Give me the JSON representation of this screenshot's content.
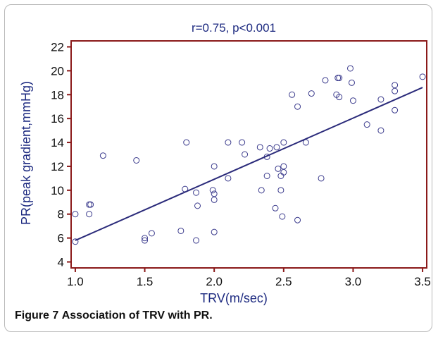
{
  "caption": {
    "label": "Figure 7",
    "text": "Association of TRV with PR."
  },
  "colors": {
    "axis_frame": "#8b1a1a",
    "axis_text": "#1d2a80",
    "tick_text": "#111111",
    "marker": "#3a3a8c",
    "regression_line": "#2a2a7a",
    "background": "#ffffff"
  },
  "chart_data": {
    "type": "scatter",
    "title": "r=0.75, p<0.001",
    "xlabel": "TRV(m/sec)",
    "ylabel": "PR(peak gradient,mmHg)",
    "xlim": [
      0.97,
      3.53
    ],
    "ylim": [
      3.5,
      22.5
    ],
    "xticks": [
      1.0,
      1.5,
      2.0,
      2.5,
      3.0,
      3.5
    ],
    "xtick_labels": [
      "1.0",
      "1.5",
      "2.0",
      "2.5",
      "3.0",
      "3.5"
    ],
    "yticks": [
      4,
      6,
      8,
      10,
      12,
      14,
      16,
      18,
      20,
      22
    ],
    "ytick_labels": [
      "4",
      "6",
      "8",
      "10",
      "12",
      "14",
      "16",
      "18",
      "20",
      "22"
    ],
    "grid": false,
    "legend": false,
    "marker": "open-circle",
    "regression_line": {
      "x": [
        1.0,
        3.5
      ],
      "y": [
        5.8,
        18.6
      ]
    },
    "points": [
      {
        "x": 1.0,
        "y": 5.7
      },
      {
        "x": 1.0,
        "y": 8.0
      },
      {
        "x": 1.1,
        "y": 8.0
      },
      {
        "x": 1.1,
        "y": 8.8
      },
      {
        "x": 1.11,
        "y": 8.8
      },
      {
        "x": 1.2,
        "y": 12.9
      },
      {
        "x": 1.44,
        "y": 12.5
      },
      {
        "x": 1.5,
        "y": 5.8
      },
      {
        "x": 1.5,
        "y": 6.0
      },
      {
        "x": 1.55,
        "y": 6.4
      },
      {
        "x": 1.76,
        "y": 6.6
      },
      {
        "x": 1.79,
        "y": 10.1
      },
      {
        "x": 1.8,
        "y": 14.0
      },
      {
        "x": 1.87,
        "y": 5.8
      },
      {
        "x": 1.87,
        "y": 9.8
      },
      {
        "x": 1.88,
        "y": 8.7
      },
      {
        "x": 1.99,
        "y": 10.0
      },
      {
        "x": 2.0,
        "y": 12.0
      },
      {
        "x": 2.0,
        "y": 9.7
      },
      {
        "x": 2.0,
        "y": 9.2
      },
      {
        "x": 2.0,
        "y": 6.5
      },
      {
        "x": 2.1,
        "y": 14.0
      },
      {
        "x": 2.1,
        "y": 11.0
      },
      {
        "x": 2.2,
        "y": 14.0
      },
      {
        "x": 2.22,
        "y": 13.0
      },
      {
        "x": 2.33,
        "y": 13.6
      },
      {
        "x": 2.34,
        "y": 10.0
      },
      {
        "x": 2.38,
        "y": 12.8
      },
      {
        "x": 2.38,
        "y": 11.2
      },
      {
        "x": 2.4,
        "y": 13.5
      },
      {
        "x": 2.44,
        "y": 8.5
      },
      {
        "x": 2.45,
        "y": 13.6
      },
      {
        "x": 2.46,
        "y": 11.8
      },
      {
        "x": 2.48,
        "y": 10.0
      },
      {
        "x": 2.48,
        "y": 11.2
      },
      {
        "x": 2.49,
        "y": 7.8
      },
      {
        "x": 2.5,
        "y": 14.0
      },
      {
        "x": 2.5,
        "y": 12.0
      },
      {
        "x": 2.5,
        "y": 11.5
      },
      {
        "x": 2.56,
        "y": 18.0
      },
      {
        "x": 2.6,
        "y": 17.0
      },
      {
        "x": 2.6,
        "y": 7.5
      },
      {
        "x": 2.66,
        "y": 14.0
      },
      {
        "x": 2.7,
        "y": 18.1
      },
      {
        "x": 2.77,
        "y": 11.0
      },
      {
        "x": 2.8,
        "y": 19.2
      },
      {
        "x": 2.88,
        "y": 18.0
      },
      {
        "x": 2.89,
        "y": 19.4
      },
      {
        "x": 2.9,
        "y": 19.4
      },
      {
        "x": 2.9,
        "y": 17.8
      },
      {
        "x": 2.98,
        "y": 20.2
      },
      {
        "x": 2.99,
        "y": 19.0
      },
      {
        "x": 3.0,
        "y": 17.5
      },
      {
        "x": 3.1,
        "y": 15.5
      },
      {
        "x": 3.2,
        "y": 17.6
      },
      {
        "x": 3.2,
        "y": 15.0
      },
      {
        "x": 3.3,
        "y": 18.8
      },
      {
        "x": 3.3,
        "y": 18.3
      },
      {
        "x": 3.3,
        "y": 16.7
      },
      {
        "x": 3.5,
        "y": 19.5
      }
    ]
  }
}
